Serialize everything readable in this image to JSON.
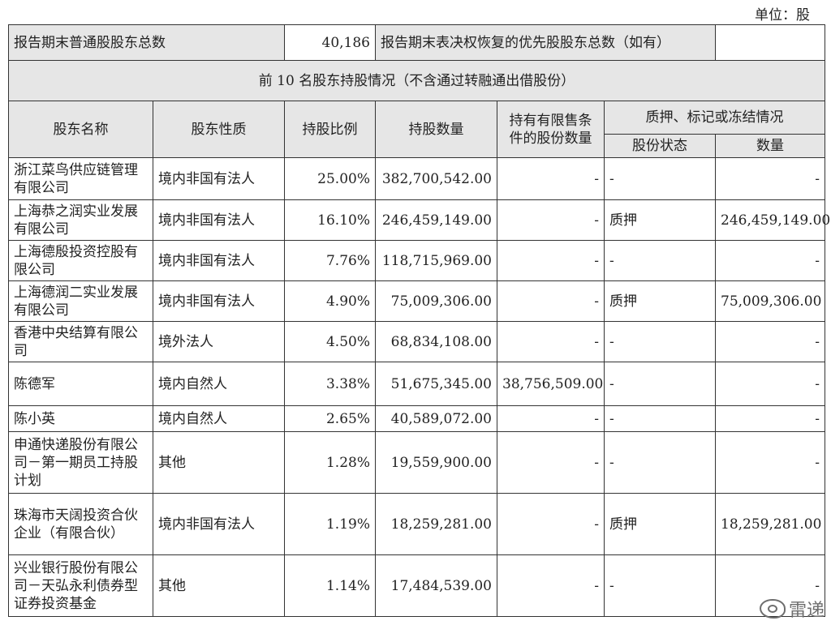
{
  "unit_label": "单位：股",
  "summary": {
    "label_common": "报告期末普通股股东总数",
    "value_common": "40,186",
    "label_preferred": "报告期末表决权恢复的优先股股东总数（如有）",
    "value_preferred": ""
  },
  "section_title": "前 10 名股东持股情况（不含通过转融通出借股份）",
  "headers": {
    "name": "股东名称",
    "nature": "股东性质",
    "ratio": "持股比例",
    "quantity": "持股数量",
    "restricted": "持有有限售条件的股份数量",
    "pledge_group": "质押、标记或冻结情况",
    "pledge_status": "股份状态",
    "pledge_qty": "数量"
  },
  "rows": [
    {
      "name": "浙江菜鸟供应链管理有限公司",
      "nature": "境内非国有法人",
      "ratio": "25.00%",
      "quantity": "382,700,542.00",
      "restricted": "-",
      "status": "-",
      "pledge_qty": "-"
    },
    {
      "name": "上海恭之润实业发展有限公司",
      "nature": "境内非国有法人",
      "ratio": "16.10%",
      "quantity": "246,459,149.00",
      "restricted": "-",
      "status": "质押",
      "pledge_qty": "246,459,149.00"
    },
    {
      "name": "上海德殷投资控股有限公司",
      "nature": "境内非国有法人",
      "ratio": "7.76%",
      "quantity": "118,715,969.00",
      "restricted": "-",
      "status": "-",
      "pledge_qty": "-"
    },
    {
      "name": "上海德润二实业发展有限公司",
      "nature": "境内非国有法人",
      "ratio": "4.90%",
      "quantity": "75,009,306.00",
      "restricted": "-",
      "status": "质押",
      "pledge_qty": "75,009,306.00"
    },
    {
      "name": "香港中央结算有限公司",
      "nature": "境外法人",
      "ratio": "4.50%",
      "quantity": "68,834,108.00",
      "restricted": "-",
      "status": "-",
      "pledge_qty": "-"
    },
    {
      "name": "陈德军",
      "nature": "境内自然人",
      "ratio": "3.38%",
      "quantity": "51,675,345.00",
      "restricted": "38,756,509.00",
      "status": "-",
      "pledge_qty": "-"
    },
    {
      "name": "陈小英",
      "nature": "境内自然人",
      "ratio": "2.65%",
      "quantity": "40,589,072.00",
      "restricted": "-",
      "status": "-",
      "pledge_qty": "-"
    },
    {
      "name": "申通快递股份有限公司－第一期员工持股计划",
      "nature": "其他",
      "ratio": "1.28%",
      "quantity": "19,559,900.00",
      "restricted": "-",
      "status": "-",
      "pledge_qty": "-"
    },
    {
      "name": "珠海市天阔投资合伙企业（有限合伙）",
      "nature": "境内非国有法人",
      "ratio": "1.19%",
      "quantity": "18,259,281.00",
      "restricted": "-",
      "status": "质押",
      "pledge_qty": "18,259,281.00"
    },
    {
      "name": "兴业银行股份有限公司－天弘永利债券型证券投资基金",
      "nature": "其他",
      "ratio": "1.14%",
      "quantity": "17,484,539.00",
      "restricted": "-",
      "status": "-",
      "pledge_qty": "-"
    }
  ],
  "watermark": "雷递"
}
